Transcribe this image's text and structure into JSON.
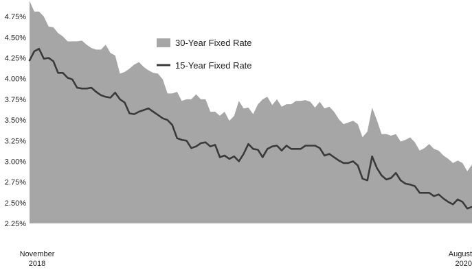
{
  "chart_data": {
    "type": "area",
    "x_labels": [
      {
        "line1": "November",
        "line2": "2018"
      },
      {
        "line1": "August",
        "line2": "2020"
      }
    ],
    "y_ticks": [
      "4.75%",
      "4.50%",
      "4.25%",
      "4.00%",
      "3.75%",
      "3.50%",
      "3.25%",
      "3.00%",
      "2.75%",
      "2.50%",
      "2.25%"
    ],
    "ylim": [
      2.25,
      4.95
    ],
    "grid": false,
    "legend_position": "top-center",
    "series": [
      {
        "name": "30-Year Fixed Rate",
        "type": "area",
        "color": "#a6a6a6",
        "values": [
          4.94,
          4.81,
          4.81,
          4.75,
          4.63,
          4.62,
          4.55,
          4.51,
          4.45,
          4.45,
          4.45,
          4.46,
          4.41,
          4.37,
          4.35,
          4.35,
          4.41,
          4.31,
          4.28,
          4.06,
          4.08,
          4.12,
          4.17,
          4.2,
          4.14,
          4.1,
          4.07,
          4.06,
          3.99,
          3.82,
          3.82,
          3.84,
          3.73,
          3.75,
          3.75,
          3.81,
          3.75,
          3.75,
          3.6,
          3.6,
          3.55,
          3.6,
          3.49,
          3.55,
          3.73,
          3.64,
          3.65,
          3.57,
          3.69,
          3.75,
          3.78,
          3.68,
          3.75,
          3.66,
          3.69,
          3.69,
          3.73,
          3.73,
          3.74,
          3.72,
          3.65,
          3.72,
          3.64,
          3.66,
          3.6,
          3.51,
          3.45,
          3.47,
          3.49,
          3.45,
          3.29,
          3.36,
          3.65,
          3.5,
          3.33,
          3.33,
          3.31,
          3.33,
          3.24,
          3.26,
          3.29,
          3.23,
          3.13,
          3.16,
          3.21,
          3.15,
          3.13,
          3.07,
          3.03,
          2.98,
          3.01,
          2.98,
          2.88,
          2.96
        ]
      },
      {
        "name": "15-Year Fixed Rate",
        "type": "line",
        "color": "#3a3a3a",
        "values": [
          4.22,
          4.33,
          4.36,
          4.24,
          4.25,
          4.21,
          4.07,
          4.07,
          4.01,
          3.99,
          3.89,
          3.88,
          3.88,
          3.89,
          3.84,
          3.8,
          3.78,
          3.77,
          3.83,
          3.75,
          3.71,
          3.58,
          3.57,
          3.6,
          3.62,
          3.64,
          3.6,
          3.56,
          3.52,
          3.5,
          3.44,
          3.28,
          3.26,
          3.25,
          3.16,
          3.18,
          3.22,
          3.23,
          3.18,
          3.2,
          3.05,
          3.07,
          3.03,
          3.06,
          3.0,
          3.09,
          3.21,
          3.15,
          3.14,
          3.05,
          3.15,
          3.18,
          3.19,
          3.13,
          3.19,
          3.15,
          3.15,
          3.15,
          3.19,
          3.19,
          3.19,
          3.16,
          3.07,
          3.09,
          3.05,
          3.01,
          2.98,
          2.98,
          3.0,
          2.95,
          2.79,
          2.77,
          3.06,
          2.92,
          2.83,
          2.78,
          2.8,
          2.86,
          2.77,
          2.73,
          2.72,
          2.7,
          2.62,
          2.62,
          2.62,
          2.58,
          2.6,
          2.55,
          2.51,
          2.48,
          2.54,
          2.51,
          2.43,
          2.45
        ]
      }
    ]
  }
}
